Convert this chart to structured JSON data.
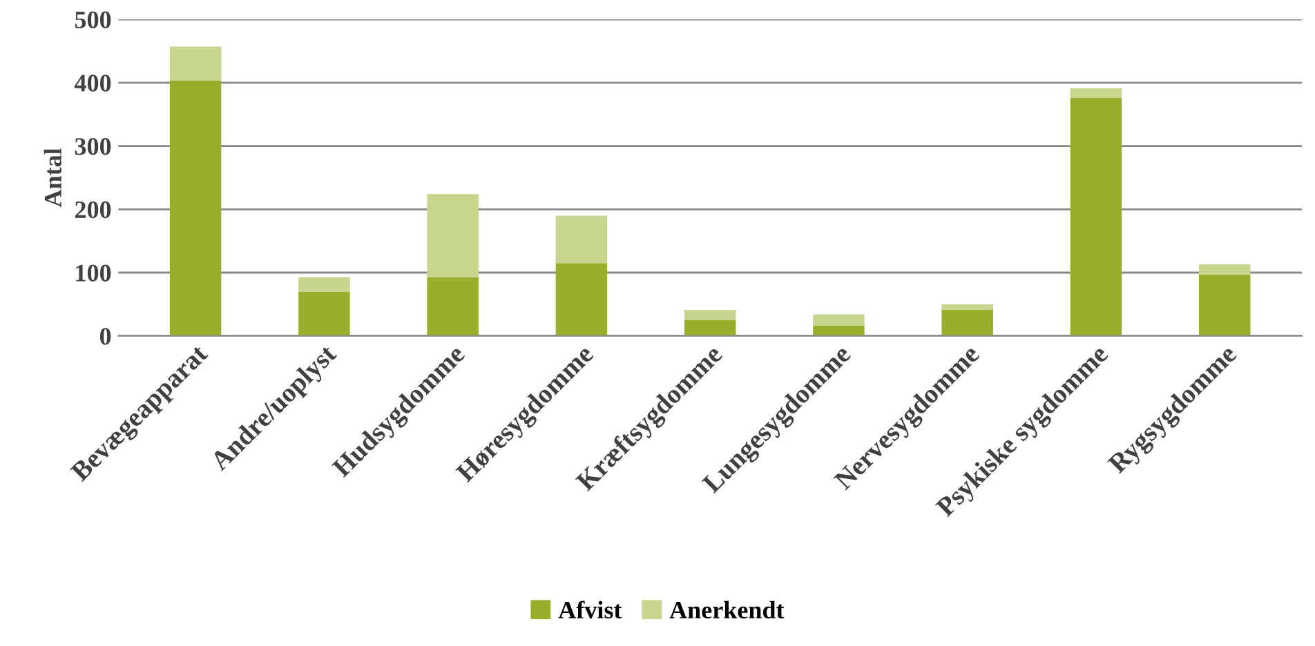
{
  "chart_data": {
    "type": "bar",
    "stacked": true,
    "ylabel": "Antal",
    "categories": [
      "Bevægeapparat",
      "Andre/uoplyst",
      "Hudsygdomme",
      "Høresygdomme",
      "Kræftsygdomme",
      "Lungesygdomme",
      "Nervesygdomme",
      "Psykiske sygdomme",
      "Rygsygdomme"
    ],
    "series": [
      {
        "name": "Afvist",
        "color": "#9aae2e",
        "values": [
          403,
          70,
          93,
          115,
          25,
          16,
          41,
          376,
          97
        ]
      },
      {
        "name": "Anerkendt",
        "color": "#c7d58f",
        "values": [
          54,
          23,
          131,
          75,
          16,
          18,
          9,
          15,
          16
        ]
      }
    ],
    "ylim": [
      0,
      500
    ],
    "yticks": [
      0,
      100,
      200,
      300,
      400,
      500
    ],
    "grid": "y",
    "legend": "bottom"
  }
}
